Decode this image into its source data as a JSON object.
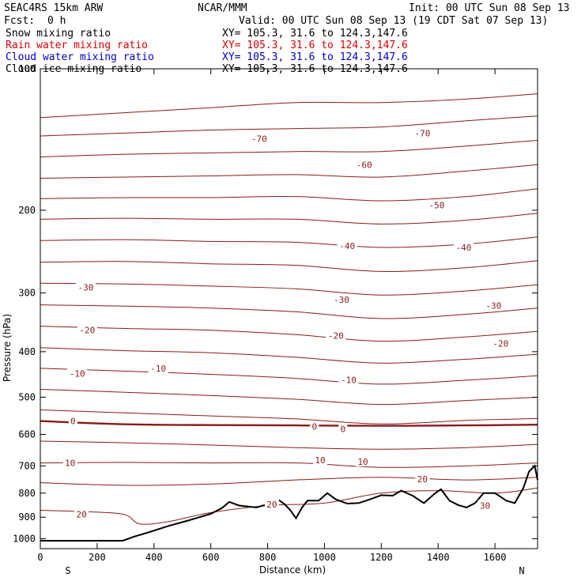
{
  "header": {
    "model": "SEAC4RS 15km ARW",
    "center": "NCAR/MMM",
    "init": "Init: 00 UTC Sun 08 Sep 13",
    "fcst_label": "Fcst:",
    "fcst_value": "0 h",
    "valid": "Valid: 00 UTC Sun 08 Sep 13 (19 CDT Sat 07 Sep 13)"
  },
  "fields": [
    {
      "name": "Snow mixing ratio",
      "xy": "XY= 105.3, 31.6 to 124.3,147.6",
      "color": "#000000"
    },
    {
      "name": "Rain water mixing ratio",
      "xy": "XY= 105.3, 31.6 to 124.3,147.6",
      "color": "#e00000"
    },
    {
      "name": "Cloud water mixing ratio",
      "xy": "XY= 105.3, 31.6 to 124.3,147.6",
      "color": "#0000cc"
    },
    {
      "name": "Cloud ice mixing ratio",
      "xy": "XY= 105.3, 31.6 to 124.3,147.6",
      "color": "#000000"
    }
  ],
  "chart_data": {
    "type": "line",
    "xlabel": "Distance (km)",
    "ylabel": "Pressure (hPa)",
    "xlim": [
      0,
      1750
    ],
    "ylim": [
      1050,
      100
    ],
    "y_scale": "log",
    "x_ticks": [
      "0",
      "200",
      "400",
      "600",
      "800",
      "1000",
      "1200",
      "1400",
      "1600"
    ],
    "y_ticks": [
      "100",
      "200",
      "300",
      "400",
      "500",
      "600",
      "700",
      "800",
      "900",
      "1000"
    ],
    "end_labels": {
      "left": "S",
      "right": "N"
    },
    "isotherm_color": "#8b1a1a",
    "terrain_color": "#000000",
    "isotherm_labels": [
      {
        "text": "-70",
        "x": 770,
        "y": 141
      },
      {
        "text": "-70",
        "x": 1345,
        "y": 137
      },
      {
        "text": "-60",
        "x": 1140,
        "y": 160
      },
      {
        "text": "-50",
        "x": 1395,
        "y": 195
      },
      {
        "text": "-40",
        "x": 1080,
        "y": 238
      },
      {
        "text": "-40",
        "x": 1490,
        "y": 240
      },
      {
        "text": "-30",
        "x": 160,
        "y": 292
      },
      {
        "text": "-30",
        "x": 1060,
        "y": 310
      },
      {
        "text": "-30",
        "x": 1595,
        "y": 319
      },
      {
        "text": "-20",
        "x": 165,
        "y": 360
      },
      {
        "text": "-20",
        "x": 1040,
        "y": 370
      },
      {
        "text": "-20",
        "x": 1620,
        "y": 384
      },
      {
        "text": "-10",
        "x": 415,
        "y": 434
      },
      {
        "text": "-10",
        "x": 130,
        "y": 445
      },
      {
        "text": "-10",
        "x": 1085,
        "y": 459
      },
      {
        "text": "0",
        "x": 115,
        "y": 562
      },
      {
        "text": "0",
        "x": 965,
        "y": 577
      },
      {
        "text": "0",
        "x": 1065,
        "y": 584
      },
      {
        "text": "10",
        "x": 105,
        "y": 690
      },
      {
        "text": "10",
        "x": 985,
        "y": 681
      },
      {
        "text": "10",
        "x": 1135,
        "y": 686
      },
      {
        "text": "20",
        "x": 1345,
        "y": 746
      },
      {
        "text": "20",
        "x": 815,
        "y": 845
      },
      {
        "text": "20",
        "x": 145,
        "y": 887
      },
      {
        "text": "30",
        "x": 1565,
        "y": 850
      }
    ],
    "series": [
      {
        "values": [
          [
            0,
            127
          ],
          [
            300,
            124
          ],
          [
            600,
            121
          ],
          [
            900,
            118
          ],
          [
            1200,
            118
          ],
          [
            1500,
            116
          ],
          [
            1750,
            113
          ]
        ]
      },
      {
        "values": [
          [
            0,
            139
          ],
          [
            300,
            137
          ],
          [
            600,
            135
          ],
          [
            900,
            134
          ],
          [
            1200,
            133
          ],
          [
            1500,
            129
          ],
          [
            1750,
            126
          ]
        ]
      },
      {
        "values": [
          [
            0,
            154
          ],
          [
            300,
            152
          ],
          [
            600,
            151
          ],
          [
            900,
            150
          ],
          [
            1200,
            150
          ],
          [
            1500,
            146
          ],
          [
            1750,
            142
          ]
        ]
      },
      {
        "values": [
          [
            0,
            171
          ],
          [
            300,
            170
          ],
          [
            600,
            169
          ],
          [
            900,
            168
          ],
          [
            1200,
            170
          ],
          [
            1500,
            165
          ],
          [
            1750,
            160
          ]
        ]
      },
      {
        "values": [
          [
            0,
            189
          ],
          [
            300,
            188
          ],
          [
            600,
            188
          ],
          [
            900,
            187
          ],
          [
            1200,
            191
          ],
          [
            1500,
            187
          ],
          [
            1750,
            180
          ]
        ]
      },
      {
        "values": [
          [
            0,
            209
          ],
          [
            300,
            208
          ],
          [
            600,
            209
          ],
          [
            900,
            209
          ],
          [
            1200,
            214
          ],
          [
            1500,
            210
          ],
          [
            1750,
            203
          ]
        ]
      },
      {
        "values": [
          [
            0,
            232
          ],
          [
            300,
            231
          ],
          [
            600,
            233
          ],
          [
            900,
            234
          ],
          [
            1200,
            240
          ],
          [
            1500,
            236
          ],
          [
            1750,
            228
          ]
        ]
      },
      {
        "values": [
          [
            0,
            258
          ],
          [
            300,
            257
          ],
          [
            600,
            260
          ],
          [
            900,
            262
          ],
          [
            1200,
            270
          ],
          [
            1500,
            265
          ],
          [
            1750,
            256
          ]
        ]
      },
      {
        "values": [
          [
            0,
            286
          ],
          [
            300,
            287
          ],
          [
            600,
            290
          ],
          [
            900,
            294
          ],
          [
            1200,
            303
          ],
          [
            1500,
            297
          ],
          [
            1750,
            288
          ]
        ]
      },
      {
        "values": [
          [
            0,
            318
          ],
          [
            300,
            320
          ],
          [
            600,
            323
          ],
          [
            900,
            329
          ],
          [
            1200,
            340
          ],
          [
            1500,
            333
          ],
          [
            1750,
            323
          ]
        ]
      },
      {
        "values": [
          [
            0,
            353
          ],
          [
            300,
            357
          ],
          [
            600,
            360
          ],
          [
            900,
            368
          ],
          [
            1200,
            380
          ],
          [
            1500,
            372
          ],
          [
            1750,
            362
          ]
        ]
      },
      {
        "values": [
          [
            0,
            392
          ],
          [
            300,
            398
          ],
          [
            600,
            402
          ],
          [
            900,
            411
          ],
          [
            1200,
            423
          ],
          [
            1500,
            415
          ],
          [
            1750,
            405
          ]
        ]
      },
      {
        "values": [
          [
            0,
            434
          ],
          [
            300,
            440
          ],
          [
            600,
            447
          ],
          [
            900,
            456
          ],
          [
            1200,
            469
          ],
          [
            1500,
            460
          ],
          [
            1750,
            450
          ]
        ]
      },
      {
        "values": [
          [
            0,
            481
          ],
          [
            300,
            488
          ],
          [
            600,
            496
          ],
          [
            900,
            505
          ],
          [
            1200,
            518
          ],
          [
            1500,
            508
          ],
          [
            1750,
            500
          ]
        ]
      },
      {
        "values": [
          [
            0,
            532
          ],
          [
            300,
            540
          ],
          [
            600,
            548
          ],
          [
            900,
            556
          ],
          [
            1200,
            570
          ],
          [
            1500,
            560
          ],
          [
            1750,
            555
          ]
        ]
      },
      {
        "values": [
          [
            0,
            562
          ],
          [
            300,
            571
          ],
          [
            600,
            573
          ],
          [
            900,
            574
          ],
          [
            1200,
            575
          ],
          [
            1500,
            574
          ],
          [
            1750,
            572
          ]
        ]
      },
      {
        "values": [
          [
            0,
            620
          ],
          [
            300,
            625
          ],
          [
            600,
            632
          ],
          [
            900,
            640
          ],
          [
            1200,
            645
          ],
          [
            1500,
            640
          ],
          [
            1750,
            630
          ]
        ]
      },
      {
        "values": [
          [
            0,
            690
          ],
          [
            300,
            688
          ],
          [
            600,
            690
          ],
          [
            900,
            690
          ],
          [
            1200,
            705
          ],
          [
            1500,
            700
          ],
          [
            1750,
            690
          ]
        ]
      },
      {
        "values": [
          [
            0,
            760
          ],
          [
            300,
            770
          ],
          [
            600,
            765
          ],
          [
            900,
            750
          ],
          [
            1200,
            740
          ],
          [
            1500,
            750
          ],
          [
            1750,
            740
          ]
        ]
      },
      {
        "values": [
          [
            0,
            870
          ],
          [
            200,
            878
          ],
          [
            300,
            890
          ],
          [
            350,
            930
          ],
          [
            450,
            920
          ],
          [
            600,
            880
          ],
          [
            800,
            850
          ],
          [
            1000,
            840
          ],
          [
            1200,
            800
          ],
          [
            1400,
            790
          ],
          [
            1600,
            800
          ],
          [
            1750,
            780
          ]
        ]
      }
    ],
    "terrain": [
      [
        0,
        1010
      ],
      [
        290,
        1010
      ],
      [
        330,
        990
      ],
      [
        380,
        970
      ],
      [
        450,
        940
      ],
      [
        520,
        915
      ],
      [
        600,
        885
      ],
      [
        640,
        860
      ],
      [
        665,
        835
      ],
      [
        700,
        850
      ],
      [
        760,
        858
      ],
      [
        800,
        845
      ],
      [
        840,
        828
      ],
      [
        860,
        845
      ],
      [
        880,
        870
      ],
      [
        900,
        905
      ],
      [
        920,
        860
      ],
      [
        940,
        830
      ],
      [
        980,
        830
      ],
      [
        1010,
        800
      ],
      [
        1040,
        825
      ],
      [
        1080,
        842
      ],
      [
        1120,
        840
      ],
      [
        1160,
        825
      ],
      [
        1200,
        808
      ],
      [
        1240,
        810
      ],
      [
        1270,
        790
      ],
      [
        1310,
        810
      ],
      [
        1350,
        840
      ],
      [
        1390,
        800
      ],
      [
        1410,
        785
      ],
      [
        1440,
        830
      ],
      [
        1470,
        848
      ],
      [
        1500,
        858
      ],
      [
        1530,
        840
      ],
      [
        1560,
        800
      ],
      [
        1600,
        800
      ],
      [
        1640,
        830
      ],
      [
        1670,
        840
      ],
      [
        1700,
        780
      ],
      [
        1720,
        720
      ],
      [
        1740,
        700
      ],
      [
        1750,
        750
      ]
    ]
  }
}
